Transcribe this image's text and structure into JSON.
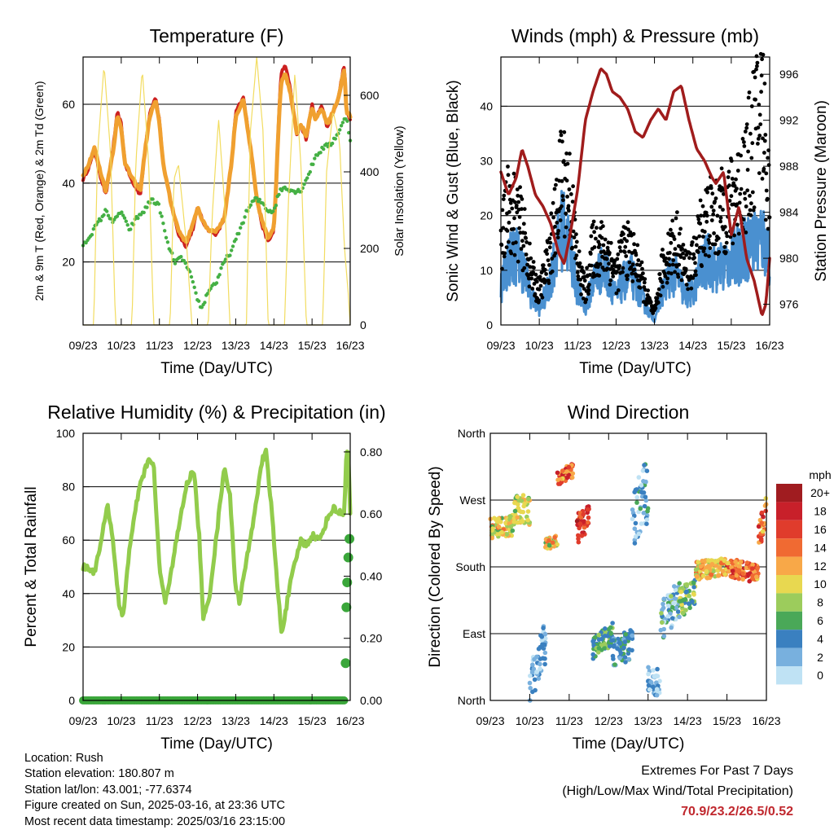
{
  "x_ticks": [
    "09/23",
    "10/23",
    "11/23",
    "12/23",
    "13/23",
    "14/23",
    "15/23",
    "16/23"
  ],
  "xlabel": "Time (Day/UTC)",
  "colors": {
    "temp2m": "#cc2020",
    "temp9m": "#f0a030",
    "dew": "#44b044",
    "solar": "#f2dc60",
    "wind": "#4a90d0",
    "gust": "#000000",
    "pressure": "#a01c1c",
    "rh": "#92cc4c",
    "precip": "#3aa63a"
  },
  "chart_data": [
    {
      "type": "line",
      "title": "Temperature (F)",
      "ylabel": "2m & 9m T (Red, Orange) & 2m Td (Green)",
      "ylabel_right": "Solar Insolation (Yellow)",
      "ylim": [
        4,
        72
      ],
      "y_ticks": [
        20,
        40,
        60
      ],
      "ylim_right": [
        0,
        700
      ],
      "y_ticks_right": [
        0,
        200,
        400,
        600
      ],
      "grid_y": true,
      "x_days": [
        0,
        7
      ],
      "series": [
        {
          "key": "temp2m",
          "x": [
            0,
            0.15,
            0.3,
            0.45,
            0.6,
            0.8,
            0.9,
            1.0,
            1.1,
            1.3,
            1.5,
            1.62,
            1.75,
            1.9,
            2.0,
            2.1,
            2.3,
            2.5,
            2.7,
            2.9,
            3.0,
            3.15,
            3.3,
            3.5,
            3.7,
            3.9,
            4.0,
            4.2,
            4.4,
            4.55,
            4.7,
            4.85,
            5.0,
            5.05,
            5.15,
            5.2,
            5.3,
            5.45,
            5.6,
            5.7,
            5.85,
            6.0,
            6.1,
            6.25,
            6.4,
            6.55,
            6.7,
            6.8,
            6.85,
            6.9,
            7.0
          ],
          "values": [
            41,
            44,
            48,
            42,
            37,
            50,
            58,
            55,
            45,
            40,
            37,
            48,
            58,
            62,
            56,
            45,
            35,
            27,
            24,
            29,
            34,
            30,
            28,
            27,
            31,
            46,
            58,
            62,
            48,
            36,
            29,
            25,
            28,
            38,
            62,
            68,
            70,
            63,
            52,
            55,
            51,
            60,
            56,
            60,
            54,
            58,
            62,
            68,
            70,
            58,
            56
          ]
        },
        {
          "key": "temp9m",
          "x": [
            0,
            0.15,
            0.3,
            0.45,
            0.6,
            0.8,
            0.9,
            1.0,
            1.1,
            1.3,
            1.5,
            1.62,
            1.75,
            1.9,
            2.0,
            2.1,
            2.3,
            2.5,
            2.7,
            2.9,
            3.0,
            3.15,
            3.3,
            3.5,
            3.7,
            3.9,
            4.0,
            4.2,
            4.4,
            4.55,
            4.7,
            4.85,
            5.0,
            5.05,
            5.15,
            5.2,
            5.3,
            5.45,
            5.6,
            5.7,
            5.85,
            6.0,
            6.1,
            6.25,
            6.4,
            6.55,
            6.7,
            6.8,
            6.85,
            6.9,
            7.0
          ],
          "values": [
            42,
            45,
            49,
            43,
            38,
            49,
            57,
            54,
            45,
            41,
            38,
            48,
            57,
            61,
            55,
            45,
            35,
            28,
            25,
            30,
            34,
            30,
            28,
            28,
            31,
            46,
            57,
            61,
            48,
            36,
            30,
            26,
            29,
            38,
            60,
            66,
            68,
            62,
            53,
            55,
            52,
            59,
            56,
            59,
            55,
            58,
            62,
            67,
            69,
            58,
            57
          ]
        },
        {
          "key": "dew",
          "x": [
            0,
            0.2,
            0.4,
            0.6,
            0.8,
            1.0,
            1.2,
            1.4,
            1.6,
            1.8,
            2.0,
            2.2,
            2.4,
            2.6,
            2.8,
            2.95,
            3.1,
            3.3,
            3.5,
            3.7,
            3.9,
            4.1,
            4.3,
            4.5,
            4.7,
            4.85,
            5.0,
            5.15,
            5.3,
            5.5,
            5.7,
            5.9,
            6.1,
            6.3,
            6.5,
            6.7,
            6.9,
            7.0
          ],
          "values": [
            24,
            27,
            30,
            33,
            30,
            33,
            28,
            31,
            33,
            36,
            34,
            25,
            20,
            21,
            17,
            12,
            8,
            13,
            15,
            20,
            23,
            28,
            33,
            36,
            35,
            33,
            33,
            38,
            39,
            38,
            38,
            42,
            47,
            49,
            50,
            53,
            57,
            51
          ]
        },
        {
          "key": "solar",
          "axis": "right",
          "x": [
            0,
            0.28,
            0.38,
            0.55,
            0.72,
            0.85,
            1.0,
            1.28,
            1.38,
            1.55,
            1.72,
            1.85,
            2.0,
            2.28,
            2.38,
            2.5,
            2.72,
            2.85,
            3.0,
            3.28,
            3.38,
            3.55,
            3.72,
            3.85,
            4.0,
            4.28,
            4.38,
            4.55,
            4.72,
            4.85,
            5.0,
            5.28,
            5.38,
            5.55,
            5.72,
            5.85,
            6.0,
            6.28,
            6.38,
            6.55,
            6.72,
            6.85,
            6.95,
            7.0
          ],
          "values": [
            0,
            0,
            450,
            680,
            450,
            0,
            0,
            0,
            420,
            670,
            420,
            0,
            0,
            0,
            380,
            420,
            200,
            0,
            0,
            0,
            280,
            540,
            300,
            0,
            0,
            0,
            500,
            700,
            500,
            0,
            0,
            0,
            320,
            660,
            400,
            0,
            0,
            0,
            400,
            560,
            480,
            200,
            80,
            0
          ]
        }
      ]
    },
    {
      "type": "line",
      "title": "Winds (mph) & Pressure (mb)",
      "ylabel": "Sonic Wind & Gust (Blue, Black)",
      "ylabel_right": "Station Pressure (Maroon)",
      "ylim": [
        0,
        49
      ],
      "y_ticks": [
        0,
        10,
        20,
        30,
        40
      ],
      "ylim_right": [
        974.2,
        997.5
      ],
      "y_ticks_right": [
        976,
        980,
        984,
        988,
        992,
        996
      ],
      "grid_y": true,
      "x_days": [
        0,
        7
      ],
      "series": [
        {
          "key": "wind",
          "x": [
            0,
            0.2,
            0.4,
            0.6,
            0.8,
            1.0,
            1.2,
            1.4,
            1.6,
            1.8,
            2.0,
            2.2,
            2.4,
            2.6,
            2.8,
            3.0,
            3.2,
            3.4,
            3.6,
            3.8,
            4.0,
            4.2,
            4.4,
            4.6,
            4.8,
            5.0,
            5.2,
            5.4,
            5.6,
            5.8,
            6.0,
            6.2,
            6.4,
            6.6,
            6.8,
            7.0
          ],
          "values": [
            7,
            12,
            13,
            10,
            5,
            3,
            6,
            12,
            18,
            14,
            6,
            3,
            8,
            10,
            9,
            5,
            8,
            9,
            6,
            3,
            1,
            6,
            9,
            9,
            5,
            6,
            10,
            12,
            10,
            11,
            12,
            13,
            14,
            15,
            16,
            13
          ]
        },
        {
          "key": "gust",
          "x": [
            0,
            0.2,
            0.4,
            0.6,
            0.8,
            1.0,
            1.2,
            1.4,
            1.6,
            1.8,
            2.0,
            2.2,
            2.4,
            2.6,
            2.8,
            3.0,
            3.2,
            3.4,
            3.6,
            3.8,
            4.0,
            4.2,
            4.4,
            4.6,
            4.8,
            5.0,
            5.2,
            5.4,
            5.6,
            5.8,
            6.0,
            6.2,
            6.4,
            6.6,
            6.8,
            7.0
          ],
          "values": [
            14,
            22,
            20,
            16,
            9,
            6,
            11,
            18,
            28,
            24,
            11,
            6,
            14,
            14,
            13,
            9,
            14,
            13,
            10,
            5,
            2,
            10,
            14,
            15,
            10,
            11,
            17,
            20,
            19,
            21,
            22,
            25,
            28,
            35,
            40,
            22
          ]
        },
        {
          "key": "pressure",
          "axis": "right",
          "x": [
            0,
            0.2,
            0.4,
            0.55,
            0.7,
            0.9,
            1.1,
            1.3,
            1.5,
            1.65,
            1.8,
            2.0,
            2.2,
            2.4,
            2.6,
            2.75,
            2.9,
            3.1,
            3.3,
            3.5,
            3.7,
            3.9,
            4.1,
            4.3,
            4.5,
            4.7,
            4.9,
            5.1,
            5.3,
            5.5,
            5.6,
            5.8,
            6.0,
            6.2,
            6.4,
            6.6,
            6.8,
            6.9,
            7.0
          ],
          "values": [
            987.5,
            985.5,
            987,
            989.5,
            988,
            985.5,
            984.5,
            983,
            980.5,
            979.5,
            982,
            986,
            992,
            994.5,
            996.5,
            996,
            994.5,
            994,
            993,
            991,
            990.5,
            992,
            993,
            992,
            994.5,
            995,
            992,
            989.5,
            988.5,
            987,
            986.5,
            987.5,
            982,
            984.5,
            980,
            978,
            975,
            976,
            980
          ]
        }
      ]
    },
    {
      "type": "line",
      "title": "Relative Humidity (%) & Precipitation (in)",
      "ylabel": "Percent & Total Rainfall",
      "ylim": [
        0,
        100
      ],
      "y_ticks": [
        0,
        20,
        40,
        60,
        80,
        100
      ],
      "ylim_right": [
        0,
        0.86
      ],
      "y_ticks_right": [
        "0.00",
        "0.20",
        "0.40",
        "0.60",
        "0.80"
      ],
      "grid_y": true,
      "x_days": [
        0,
        7
      ],
      "series": [
        {
          "key": "rh",
          "x": [
            0,
            0.1,
            0.3,
            0.5,
            0.65,
            0.8,
            0.95,
            1.05,
            1.2,
            1.45,
            1.7,
            1.85,
            2.0,
            2.15,
            2.45,
            2.7,
            2.9,
            3.05,
            3.15,
            3.3,
            3.5,
            3.7,
            3.85,
            4.0,
            4.1,
            4.4,
            4.7,
            4.8,
            4.95,
            5.05,
            5.2,
            5.45,
            5.7,
            5.85,
            6.0,
            6.2,
            6.4,
            6.55,
            6.75,
            6.85,
            6.9,
            6.95,
            7.0
          ],
          "values": [
            50,
            50,
            48,
            62,
            73,
            58,
            34,
            32,
            55,
            78,
            90,
            88,
            50,
            36,
            60,
            80,
            87,
            60,
            30,
            38,
            62,
            88,
            76,
            42,
            37,
            62,
            90,
            93,
            70,
            50,
            25,
            45,
            60,
            58,
            62,
            60,
            68,
            72,
            70,
            70,
            95,
            92,
            70
          ]
        },
        {
          "key": "precip",
          "axis": "right",
          "x": [
            0,
            1,
            2,
            3,
            4,
            5,
            6,
            6.85,
            6.88,
            6.9,
            6.92,
            6.95,
            6.98
          ],
          "values": [
            0,
            0,
            0,
            0,
            0,
            0,
            0,
            0,
            0.12,
            0.3,
            0.38,
            0.46,
            0.52
          ]
        }
      ]
    },
    {
      "type": "scatter",
      "title": "Wind Direction",
      "ylabel": "Direction (Colored By Speed)",
      "y_tick_labels": [
        "North",
        "East",
        "South",
        "West",
        "North"
      ],
      "ylim": [
        0,
        360
      ],
      "x_days": [
        0,
        7
      ],
      "legend_title": "mph",
      "legend_labels": [
        "20+",
        "18",
        "16",
        "14",
        "12",
        "10",
        "8",
        "6",
        "4",
        "2",
        "0"
      ],
      "legend_colors": [
        "#a01c20",
        "#c8202a",
        "#e03c2c",
        "#f06a32",
        "#f8a848",
        "#e8d850",
        "#9ccc5c",
        "#4aa858",
        "#3a80c0",
        "#78b0de",
        "#bfe2f4"
      ],
      "regimes": [
        {
          "x0": 0.0,
          "x1": 0.6,
          "dir0": 230,
          "dir1": 235,
          "spread": 30,
          "speed": [
            6,
            14
          ]
        },
        {
          "x0": 0.6,
          "x1": 1.0,
          "dir0": 260,
          "dir1": 255,
          "spread": 40,
          "speed": [
            6,
            12
          ]
        },
        {
          "x0": 1.0,
          "x1": 1.4,
          "dir0": 20,
          "dir1": 80,
          "spread": 60,
          "speed": [
            0,
            5
          ]
        },
        {
          "x0": 1.4,
          "x1": 1.7,
          "dir0": 210,
          "dir1": 215,
          "spread": 15,
          "speed": [
            6,
            14
          ]
        },
        {
          "x0": 1.7,
          "x1": 2.1,
          "dir0": 300,
          "dir1": 310,
          "spread": 20,
          "speed": [
            10,
            18
          ]
        },
        {
          "x0": 2.2,
          "x1": 2.5,
          "dir0": 230,
          "dir1": 250,
          "spread": 40,
          "speed": [
            14,
            20
          ]
        },
        {
          "x0": 2.6,
          "x1": 3.1,
          "dir0": 70,
          "dir1": 90,
          "spread": 30,
          "speed": [
            3,
            8
          ]
        },
        {
          "x0": 3.1,
          "x1": 3.6,
          "dir0": 60,
          "dir1": 80,
          "spread": 45,
          "speed": [
            2,
            6
          ]
        },
        {
          "x0": 3.6,
          "x1": 4.0,
          "dir0": 250,
          "dir1": 280,
          "spread": 90,
          "speed": [
            0,
            6
          ]
        },
        {
          "x0": 4.0,
          "x1": 4.3,
          "dir0": 30,
          "dir1": 20,
          "spread": 40,
          "speed": [
            0,
            5
          ]
        },
        {
          "x0": 4.3,
          "x1": 4.8,
          "dir0": 100,
          "dir1": 140,
          "spread": 60,
          "speed": [
            0,
            8
          ]
        },
        {
          "x0": 4.8,
          "x1": 5.2,
          "dir0": 130,
          "dir1": 150,
          "spread": 40,
          "speed": [
            4,
            10
          ]
        },
        {
          "x0": 5.2,
          "x1": 6.0,
          "dir0": 175,
          "dir1": 180,
          "spread": 25,
          "speed": [
            8,
            14
          ]
        },
        {
          "x0": 6.0,
          "x1": 6.8,
          "dir0": 180,
          "dir1": 170,
          "spread": 25,
          "speed": [
            10,
            18
          ]
        },
        {
          "x0": 6.8,
          "x1": 7.0,
          "dir0": 215,
          "dir1": 260,
          "spread": 40,
          "speed": [
            10,
            20
          ]
        }
      ]
    }
  ],
  "info": {
    "location": "Location: Rush",
    "elevation": "Station elevation: 180.807 m",
    "latlon": "Station lat/lon: 43.001; -77.6374",
    "created": "Figure created on Sun, 2025-03-16, at 23:36 UTC",
    "recent": "Most recent data timestamp: 2025/03/16 23:15:00"
  },
  "extremes": {
    "line1": "Extremes For Past 7 Days",
    "line2": "(High/Low/Max Wind/Total Precipitation)",
    "values": "70.9/23.2/26.5/0.52"
  }
}
